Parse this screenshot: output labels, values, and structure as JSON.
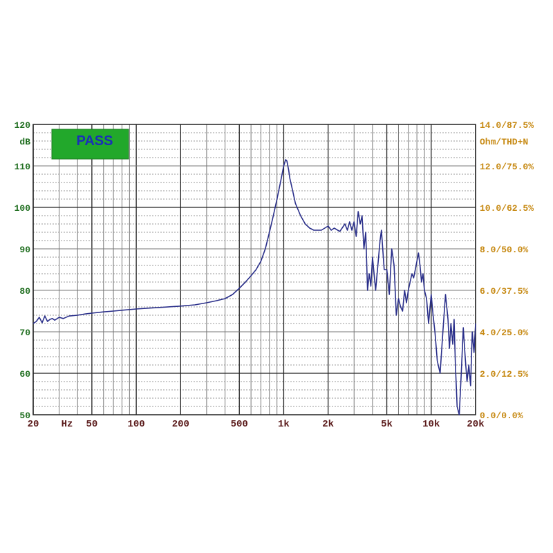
{
  "status_badge": {
    "label": "PASS",
    "bg_color": "#22a82b",
    "text_color": "#1a2fb8"
  },
  "colors": {
    "trace": "#2a2f8a",
    "grid_major": "#222222",
    "grid_minor": "#777777",
    "left_axis_text": "#1f6e1f",
    "right_axis_text": "#c78a14",
    "x_axis_text": "#5a1a1a"
  },
  "chart_data": {
    "type": "line",
    "x_scale": "log",
    "xlim": [
      20,
      20000
    ],
    "ylim": [
      50,
      120
    ],
    "grid": true,
    "ylabel": "dB",
    "y2label": "Ohm/THD+N",
    "x_unit_label": "Hz",
    "x_ticks": [
      {
        "value": 20,
        "label": "20"
      },
      {
        "value": 50,
        "label": "50"
      },
      {
        "value": 100,
        "label": "100"
      },
      {
        "value": 200,
        "label": "200"
      },
      {
        "value": 500,
        "label": "500"
      },
      {
        "value": 1000,
        "label": "1k"
      },
      {
        "value": 2000,
        "label": "2k"
      },
      {
        "value": 5000,
        "label": "5k"
      },
      {
        "value": 10000,
        "label": "10k"
      },
      {
        "value": 20000,
        "label": "20k"
      }
    ],
    "y_ticks": [
      120,
      110,
      100,
      90,
      80,
      70,
      60,
      50
    ],
    "y2_ticks": [
      {
        "y": 120,
        "label": "14.0/87.5%"
      },
      {
        "y": 110,
        "label": "12.0/75.0%"
      },
      {
        "y": 100,
        "label": "10.0/62.5%"
      },
      {
        "y": 90,
        "label": "8.0/50.0%"
      },
      {
        "y": 80,
        "label": "6.0/37.5%"
      },
      {
        "y": 70,
        "label": "4.0/25.0%"
      },
      {
        "y": 60,
        "label": "2.0/12.5%"
      },
      {
        "y": 50,
        "label": "0.0/0.0%"
      }
    ],
    "series": [
      {
        "x": [
          20,
          21,
          22,
          23,
          24,
          25,
          26,
          27,
          28,
          30,
          32,
          35,
          40,
          45,
          50,
          60,
          70,
          80,
          100,
          120,
          150,
          200,
          250,
          300,
          350,
          400,
          450,
          500,
          550,
          600,
          650,
          700,
          750,
          800,
          850,
          900,
          950,
          1000,
          1030,
          1050,
          1080,
          1100,
          1150,
          1200,
          1300,
          1400,
          1500,
          1600,
          1800,
          2000,
          2100,
          2200,
          2400,
          2600,
          2700,
          2800,
          2900,
          3000,
          3100,
          3200,
          3300,
          3400,
          3500,
          3600,
          3700,
          3800,
          3900,
          4000,
          4200,
          4400,
          4500,
          4600,
          4800,
          5000,
          5200,
          5400,
          5600,
          5800,
          6000,
          6200,
          6400,
          6600,
          6800,
          7000,
          7200,
          7400,
          7600,
          7800,
          8000,
          8200,
          8400,
          8600,
          8800,
          9000,
          9300,
          9600,
          10000,
          10300,
          10600,
          11000,
          11500,
          12000,
          12500,
          13000,
          13300,
          13600,
          14000,
          14300,
          14600,
          15000,
          15500,
          16000,
          16500,
          17000,
          17500,
          18000,
          18500,
          19000,
          19500,
          20000
        ],
        "y": [
          72,
          72.5,
          73.5,
          72.2,
          73.8,
          72.5,
          73,
          73.2,
          72.8,
          73.5,
          73.2,
          73.8,
          74,
          74.3,
          74.5,
          74.8,
          75,
          75.2,
          75.5,
          75.7,
          75.9,
          76.2,
          76.5,
          77,
          77.5,
          78,
          79,
          80.5,
          82,
          83.5,
          85,
          87,
          90,
          94,
          98,
          102,
          106,
          110,
          111.5,
          111.2,
          109,
          107,
          104,
          101,
          98,
          96,
          95,
          94.5,
          94.5,
          95.5,
          94.5,
          95,
          94.2,
          96,
          94.5,
          96.5,
          94.5,
          96.5,
          93,
          99,
          96,
          98,
          90,
          94,
          80,
          84,
          81,
          88,
          80,
          88,
          92,
          94.5,
          85,
          85,
          79,
          90,
          86,
          74,
          78,
          76,
          75,
          80,
          77,
          80,
          82,
          84,
          83,
          85,
          87,
          89,
          86,
          82,
          84,
          80,
          78,
          72,
          79,
          74,
          70,
          63,
          60,
          70,
          79,
          73,
          66,
          72,
          67,
          73,
          62,
          52,
          50,
          60,
          71,
          64,
          58,
          62,
          57,
          70,
          65,
          72
        ]
      }
    ]
  }
}
